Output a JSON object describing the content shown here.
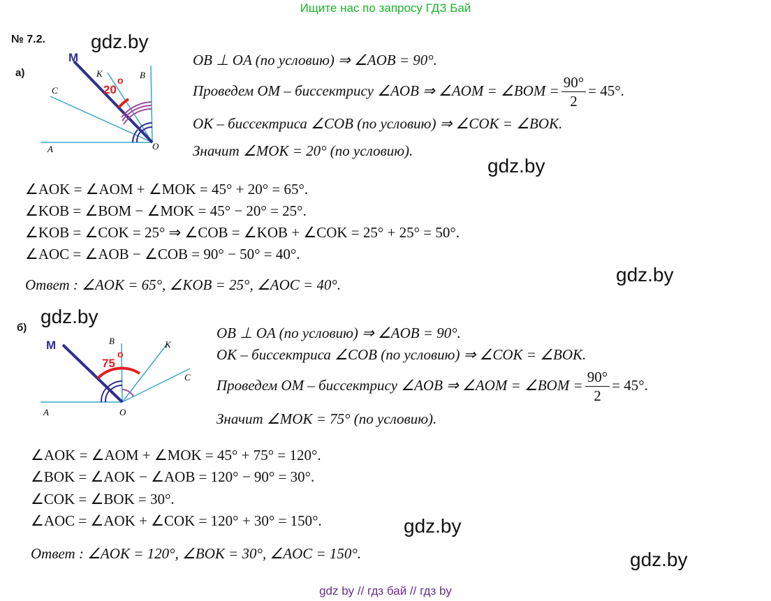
{
  "banner": "Ищите нас по запросу ГДЗ Бай",
  "problem_number": "№ 7.2.",
  "watermark": "gdz.by",
  "footer": "gdz by  //  гдз бай  //  гдз by",
  "part_a": {
    "label": "а)",
    "figure": {
      "points": {
        "M": "M",
        "K": "K",
        "B": "B",
        "C": "C",
        "A": "A",
        "O": "O"
      },
      "angle_label": "20",
      "degree_mark": "o"
    },
    "right_lines": [
      "OB ⊥ OA   (по   условию)   ⇒   ∠AOB = 90°.",
      "Проведем   OM – биссектрису   ∠AOB   ⇒   ∠AOM = ∠BOM =",
      "OK – биссектриса   ∠COB   (по   условию)   ⇒   ∠COK = ∠BOK.",
      "Значит   ∠MOK = 20°   (по   условию)."
    ],
    "fraction": {
      "num": "90°",
      "den": "2",
      "after": "= 45°."
    },
    "lines": [
      "∠AOK = ∠AOM + ∠MOK = 45° + 20° = 65°.",
      "∠KOB = ∠BOM − ∠MOK = 45° − 20° = 25°.",
      "∠KOB = ∠COK = 25°   ⇒   ∠COB = ∠KOB + ∠COK = 25° + 25° = 50°.",
      "∠AOC = ∠AOB − ∠COB = 90° − 50° = 40°."
    ],
    "answer": "Ответ :   ∠AOK = 65°,   ∠KOB = 25°,   ∠AOC = 40°."
  },
  "part_b": {
    "label": "б)",
    "figure": {
      "points": {
        "M": "M",
        "B": "B",
        "K": "K",
        "C": "C",
        "A": "A",
        "O": "O"
      },
      "angle_label": "75",
      "degree_mark": "o"
    },
    "right_lines": [
      "OB ⊥ OA   (по   условию)   ⇒   ∠AOB = 90°.",
      "OK – биссектриса   ∠COB   (по   условию)   ⇒   ∠COK = ∠BOK.",
      "Проведем   OM – биссектрису   ∠AOB   ⇒   ∠AOM = ∠BOM =",
      "Значит   ∠MOK = 75°   (по   условию)."
    ],
    "fraction": {
      "num": "90°",
      "den": "2",
      "after": "= 45°."
    },
    "lines": [
      "∠AOK = ∠AOM + ∠MOK = 45° + 75° = 120°.",
      "∠BOK = ∠AOK − ∠AOB = 120° − 90° = 30°.",
      "∠COK = ∠BOK = 30°.",
      "∠AOC = ∠AOK + ∠COK = 120° + 30° = 150°."
    ],
    "answer": "Ответ :   ∠AOK = 120°,   ∠BOK = 30°,   ∠AOC = 150°."
  }
}
